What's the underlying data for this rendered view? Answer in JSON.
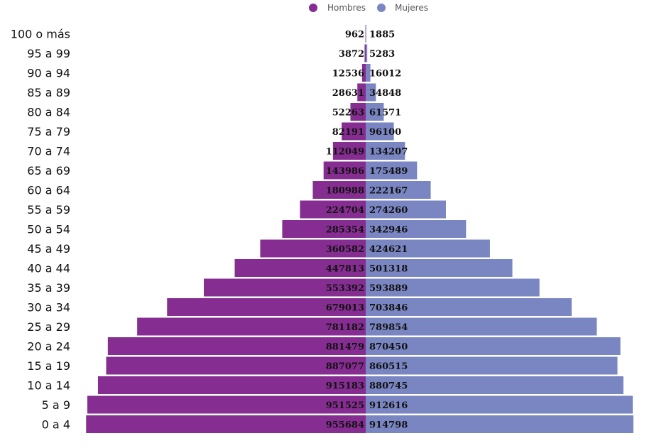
{
  "chart_data": {
    "type": "bar",
    "orientation": "horizontal-pyramid",
    "categories": [
      "100 o más",
      "95 a 99",
      "90 a 94",
      "85 a 89",
      "80 a 84",
      "75 a 79",
      "70 a 74",
      "65 a 69",
      "60 a 64",
      "55 a 59",
      "50 a 54",
      "45 a 49",
      "40 a 44",
      "35 a 39",
      "30 a 34",
      "25 a 29",
      "20 a 24",
      "15 a 19",
      "10 a 14",
      "5 a 9",
      "0 a 4"
    ],
    "series": [
      {
        "name": "Hombres",
        "color": "#862d91",
        "values": [
          962,
          3872,
          12536,
          28631,
          52263,
          82191,
          112049,
          143986,
          180988,
          224704,
          285354,
          360582,
          447813,
          553392,
          679013,
          781182,
          881479,
          887077,
          915183,
          951525,
          955684
        ]
      },
      {
        "name": "Mujeres",
        "color": "#7a86c2",
        "values": [
          1885,
          5283,
          16012,
          34848,
          61571,
          96100,
          134207,
          175489,
          222167,
          274260,
          342946,
          424621,
          501318,
          593889,
          703846,
          789854,
          870450,
          860515,
          880745,
          912616,
          914798
        ]
      }
    ],
    "legend": "top-center",
    "grid": false
  }
}
